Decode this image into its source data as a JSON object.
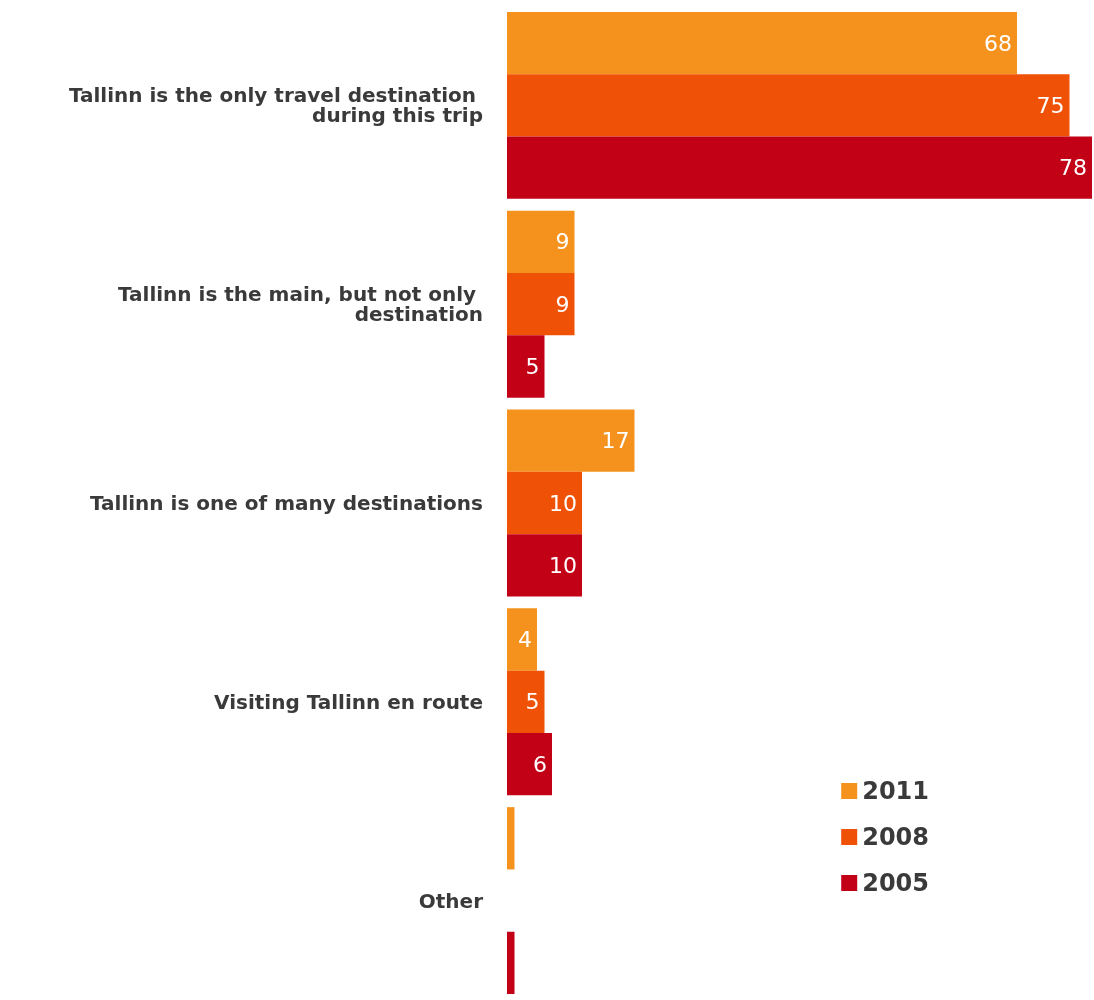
{
  "chart_data": {
    "type": "bar",
    "orientation": "horizontal",
    "categories": [
      "Tallinn is the only travel destination during this trip",
      "Tallinn is the main, but not only destination",
      "Tallinn is one of many destinations",
      "Visiting Tallinn en route",
      "Other"
    ],
    "series": [
      {
        "name": "2011",
        "color": "#f5921e",
        "values": [
          68,
          9,
          17,
          4,
          1
        ],
        "value_labels": [
          "68",
          "9",
          "17",
          "4",
          null
        ]
      },
      {
        "name": "2008",
        "color": "#ef5206",
        "values": [
          75,
          9,
          10,
          5,
          null
        ],
        "value_labels": [
          "75",
          "9",
          "10",
          "5",
          null
        ]
      },
      {
        "name": "2005",
        "color": "#c20016",
        "values": [
          78,
          5,
          10,
          6,
          1
        ],
        "value_labels": [
          "78",
          "5",
          "10",
          "6",
          null
        ]
      }
    ],
    "legend": "bottom right"
  }
}
